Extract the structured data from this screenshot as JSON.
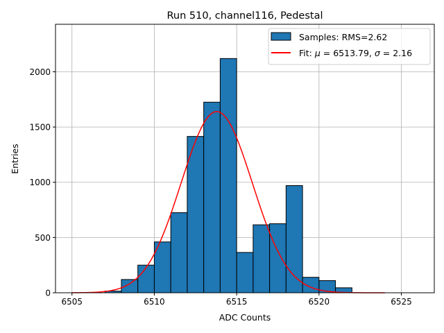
{
  "chart_data": {
    "type": "bar",
    "title": "Run 510, channel116, Pedestal",
    "xlabel": "ADC Counts",
    "ylabel": "Entries",
    "xlim": [
      6504.0,
      6527.0
    ],
    "ylim": [
      0,
      2430
    ],
    "xticks": [
      6505,
      6510,
      6515,
      6520,
      6525
    ],
    "yticks": [
      0,
      500,
      1000,
      1500,
      2000
    ],
    "grid": true,
    "legend_position": "top-right",
    "histogram": {
      "name": "Samples: RMS=2.62",
      "bin_width": 1,
      "bin_starts": [
        6507,
        6508,
        6509,
        6510,
        6511,
        6512,
        6513,
        6514,
        6515,
        6516,
        6517,
        6518,
        6519,
        6520,
        6521
      ],
      "counts": [
        15,
        120,
        250,
        460,
        725,
        1415,
        1725,
        2120,
        365,
        615,
        625,
        970,
        140,
        110,
        45
      ],
      "color": "#1f77b4",
      "edge_color": "#000000"
    },
    "fit": {
      "legend_prefix": "Fit: ",
      "mu_label": "μ",
      "mu_value": "6513.79",
      "sigma_label": "σ",
      "sigma_value": "2.16",
      "mu": 6513.79,
      "sigma": 2.16,
      "amplitude": 1640,
      "x_range": [
        6505,
        6524
      ],
      "color": "#ff0000"
    }
  }
}
